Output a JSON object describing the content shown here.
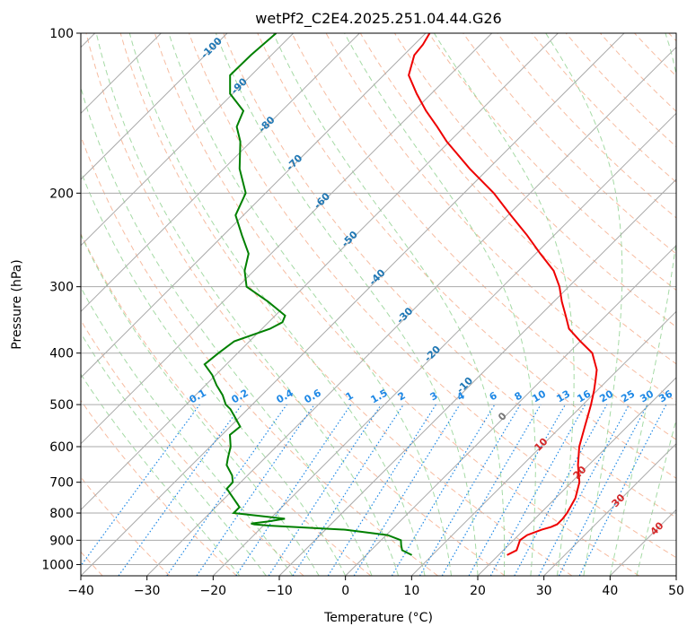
{
  "chart_data": {
    "type": "line",
    "subtype": "skew-t log-p diagram",
    "title": "wetPf2_C2E4.2025.251.04.44.G26",
    "xlabel": "Temperature (°C)",
    "ylabel": "Pressure (hPa)",
    "xlim": [
      -40,
      50
    ],
    "ylim": [
      1050,
      100
    ],
    "y_scale": "log",
    "x_ticks": [
      -40,
      -30,
      -20,
      -10,
      0,
      10,
      20,
      30,
      40,
      50
    ],
    "x_tick_labels": [
      "−40",
      "−30",
      "−20",
      "−10",
      "0",
      "10",
      "20",
      "30",
      "40",
      "50"
    ],
    "y_ticks": [
      1000,
      900,
      800,
      700,
      600,
      500,
      400,
      300,
      200,
      100
    ],
    "y_tick_labels": [
      "1000",
      "900",
      "800",
      "700",
      "600",
      "500",
      "400",
      "300",
      "200",
      "100"
    ],
    "grid": true,
    "colors": {
      "temperature": "#ee0000",
      "dewpoint": "#008000",
      "isotherm": "#aaaaaa",
      "dry_adiabat": "#f4a582",
      "moist_adiabat": "#8fd18f",
      "mixing_ratio": "#1e88e5",
      "isotherm_label": "#1f77b4",
      "warm_label": "#d62728",
      "zero_label": "#777777"
    },
    "isotherm_labels": [
      "-100",
      "-90",
      "-80",
      "-70",
      "-60",
      "-50",
      "-40",
      "-30",
      "-20",
      "-10",
      "0",
      "10",
      "20",
      "30",
      "40"
    ],
    "isotherm_label_values": [
      -100,
      -90,
      -80,
      -70,
      -60,
      -50,
      -40,
      -30,
      -20,
      -10,
      0,
      10,
      20,
      30,
      40
    ],
    "mixing_ratio_labels": [
      "0.1",
      "0.2",
      "0.4",
      "0.6",
      "1",
      "1.5",
      "2",
      "3",
      "4",
      "6",
      "8",
      "10",
      "13",
      "16",
      "20",
      "25",
      "30",
      "36"
    ],
    "mixing_ratio_values": [
      0.1,
      0.2,
      0.4,
      0.6,
      1,
      1.5,
      2,
      3,
      4,
      6,
      8,
      10,
      13,
      16,
      20,
      25,
      30,
      36
    ],
    "series": [
      {
        "key": "temperature",
        "pressure": [
          960,
          940,
          920,
          900,
          880,
          860,
          850,
          840,
          820,
          800,
          750,
          700,
          650,
          600,
          550,
          520,
          500,
          470,
          450,
          430,
          400,
          380,
          360,
          340,
          320,
          300,
          280,
          260,
          240,
          220,
          200,
          180,
          160,
          150,
          140,
          130,
          120,
          110,
          105,
          100
        ],
        "values": [
          21.3,
          22,
          21.5,
          21,
          21.3,
          22.7,
          23.7,
          24.2,
          24.2,
          24,
          23,
          21.2,
          18.4,
          15.8,
          13.6,
          12.2,
          11.2,
          9.5,
          8.2,
          6.8,
          3.6,
          0,
          -3.6,
          -6.1,
          -8.8,
          -11.4,
          -14.7,
          -19.3,
          -24.1,
          -29.6,
          -35.5,
          -42.8,
          -50.4,
          -54.1,
          -58.2,
          -62.2,
          -66.2,
          -68.4,
          -68.7,
          -69.4
        ]
      },
      {
        "key": "dewpoint",
        "pressure": [
          960,
          940,
          920,
          900,
          880,
          860,
          850,
          845,
          840,
          837,
          830,
          820,
          800,
          780,
          750,
          720,
          700,
          680,
          650,
          630,
          600,
          570,
          550,
          530,
          510,
          500,
          480,
          460,
          440,
          420,
          400,
          380,
          360,
          350,
          340,
          320,
          300,
          280,
          260,
          240,
          220,
          200,
          180,
          160,
          150,
          140,
          130,
          120,
          110,
          100
        ],
        "values": [
          6.9,
          4.7,
          3.8,
          3,
          0.2,
          -7,
          -15,
          -19,
          -21.6,
          -22.2,
          -20,
          -17.8,
          -26.4,
          -26.4,
          -28.7,
          -31.1,
          -31.2,
          -32.3,
          -34.7,
          -35.6,
          -36.9,
          -38.8,
          -38.5,
          -40.5,
          -42.6,
          -44,
          -45.9,
          -48.3,
          -50.5,
          -53.3,
          -52.9,
          -52.3,
          -48.8,
          -47.9,
          -48.5,
          -53.2,
          -58.7,
          -61.4,
          -63.4,
          -67.2,
          -71.2,
          -73,
          -77.6,
          -81.6,
          -84.4,
          -85.8,
          -90.4,
          -93.2,
          -93.1,
          -92.6
        ]
      }
    ]
  }
}
